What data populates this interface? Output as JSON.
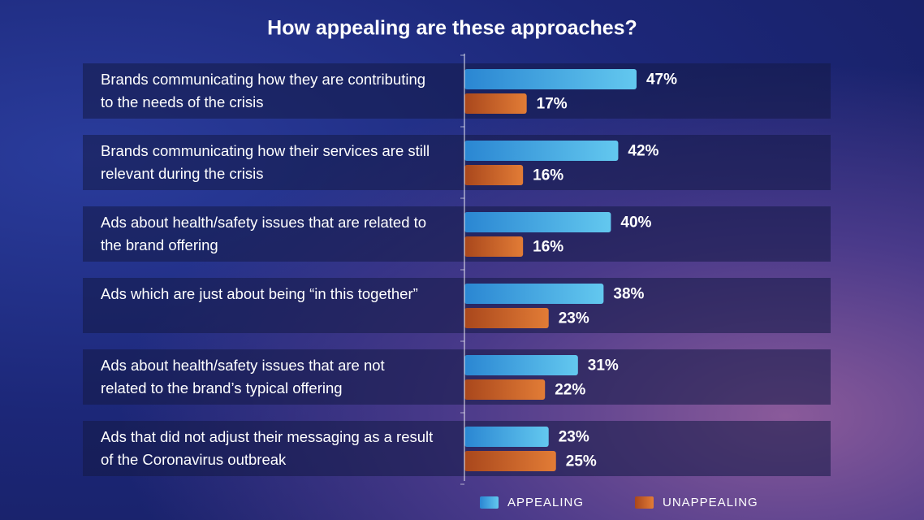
{
  "chart_data": {
    "type": "bar",
    "orientation": "horizontal",
    "title": "How appealing are these approaches?",
    "categories": [
      "Brands communicating how they are contributing to the needs of the crisis",
      "Brands communicating how their services are still relevant during the crisis",
      "Ads about health/safety issues that are related to the brand offering",
      "Ads which are just about being “in this together”",
      "Ads about health/safety issues that are not related to the brand’s typical offering",
      "Ads that did not adjust their messaging as a result of the Coronavirus outbreak"
    ],
    "series": [
      {
        "name": "APPEALING",
        "color": "#3fa4e2",
        "values": [
          47,
          42,
          40,
          38,
          31,
          23
        ],
        "value_labels": [
          "47%",
          "42%",
          "40%",
          "38%",
          "31%",
          "23%"
        ]
      },
      {
        "name": "UNAPPEALING",
        "color": "#c9602a",
        "values": [
          17,
          16,
          16,
          23,
          22,
          25
        ],
        "value_labels": [
          "17%",
          "16%",
          "16%",
          "23%",
          "22%",
          "25%"
        ]
      }
    ],
    "xlim": [
      0,
      100
    ],
    "legend": "bottom"
  }
}
